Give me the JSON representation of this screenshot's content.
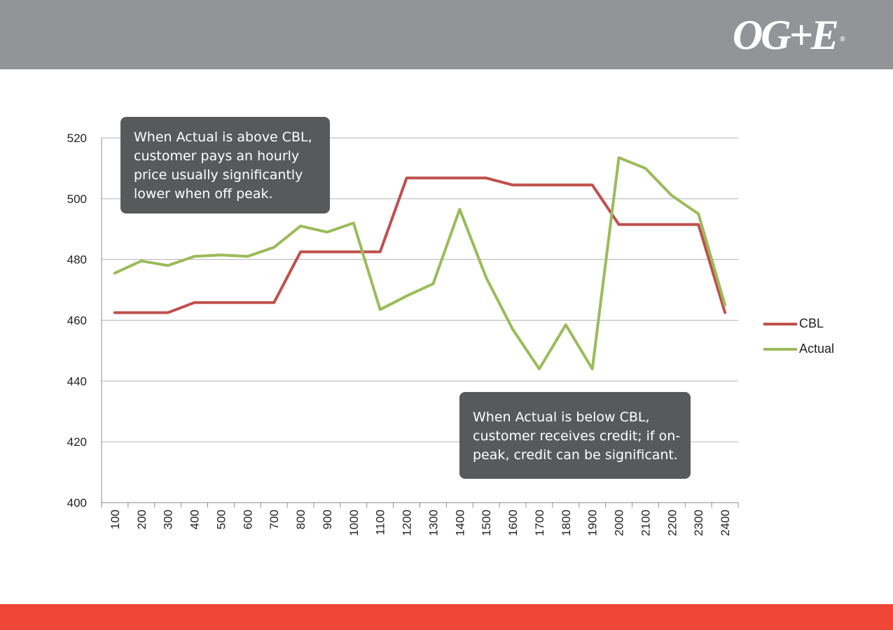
{
  "brand": {
    "logo_text": "OG+E",
    "registered_mark": "®"
  },
  "colors": {
    "header": "#929497",
    "footer": "#ef4638",
    "callout": "#58595b"
  },
  "callouts": {
    "above": "When Actual is above CBL, customer pays an hourly price usually  significantly lower when off peak.",
    "below": "When Actual is below CBL, customer receives credit; if on-peak, credit can be significant."
  },
  "chart_data": {
    "type": "line",
    "title": "",
    "xlabel": "",
    "ylabel": "",
    "categories": [
      "100",
      "200",
      "300",
      "400",
      "500",
      "600",
      "700",
      "800",
      "900",
      "1000",
      "1100",
      "1200",
      "1300",
      "1400",
      "1500",
      "1600",
      "1700",
      "1800",
      "1900",
      "2000",
      "2100",
      "2200",
      "2300",
      "2400"
    ],
    "series": [
      {
        "name": "CBL",
        "color": "#c0504d",
        "values": [
          462.5,
          462.5,
          462.5,
          465.8,
          465.8,
          465.8,
          465.8,
          482.5,
          482.5,
          482.5,
          482.5,
          506.8,
          506.8,
          506.8,
          506.8,
          504.5,
          504.5,
          504.5,
          504.5,
          491.5,
          491.5,
          491.5,
          491.5,
          462.5
        ]
      },
      {
        "name": "Actual",
        "color": "#9bbb59",
        "values": [
          475.5,
          479.5,
          478.0,
          481.0,
          481.5,
          481.0,
          484.0,
          491.0,
          489.0,
          492.0,
          463.5,
          468.0,
          472.0,
          496.5,
          474.0,
          457.0,
          444.0,
          458.5,
          444.0,
          513.5,
          510.0,
          501.0,
          495.0,
          465.0
        ]
      }
    ],
    "ylim": [
      400,
      520
    ],
    "yticks": [
      400,
      420,
      440,
      460,
      480,
      500,
      520
    ],
    "grid": true,
    "legend_position": "right"
  }
}
